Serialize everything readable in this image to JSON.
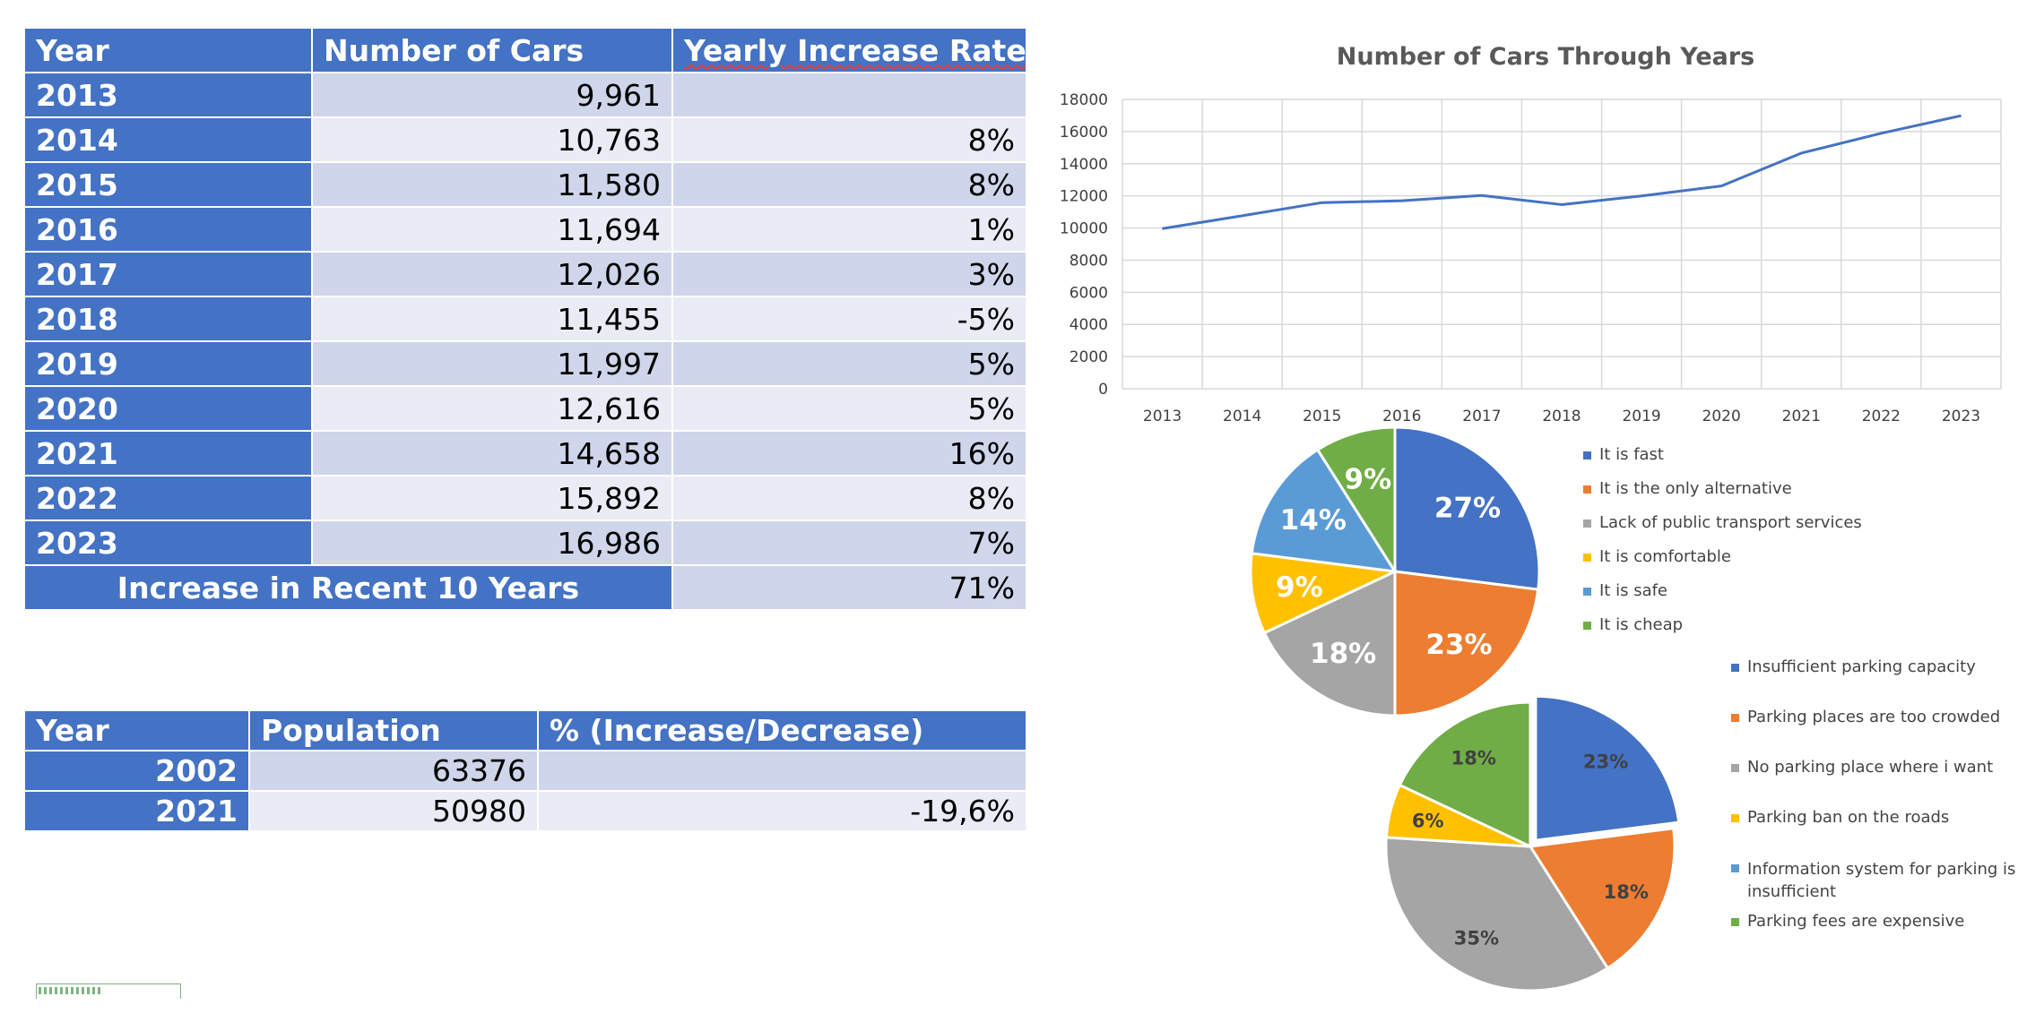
{
  "car_table": {
    "headers": [
      "Year",
      "Number of Cars",
      "Yearly Increase Rate %"
    ],
    "rows": [
      {
        "year": "2013",
        "cars": "9,961",
        "rate": ""
      },
      {
        "year": "2014",
        "cars": "10,763",
        "rate": "8%"
      },
      {
        "year": "2015",
        "cars": "11,580",
        "rate": "8%"
      },
      {
        "year": "2016",
        "cars": "11,694",
        "rate": "1%"
      },
      {
        "year": "2017",
        "cars": "12,026",
        "rate": "3%"
      },
      {
        "year": "2018",
        "cars": "11,455",
        "rate": "-5%"
      },
      {
        "year": "2019",
        "cars": "11,997",
        "rate": "5%"
      },
      {
        "year": "2020",
        "cars": "12,616",
        "rate": "5%"
      },
      {
        "year": "2021",
        "cars": "14,658",
        "rate": "16%"
      },
      {
        "year": "2022",
        "cars": "15,892",
        "rate": "8%"
      },
      {
        "year": "2023",
        "cars": "16,986",
        "rate": "7%"
      }
    ],
    "summary_label": "Increase in Recent 10 Years",
    "summary_value": "71%"
  },
  "population_table": {
    "headers": [
      "Year",
      "Population",
      "% (Increase/Decrease)"
    ],
    "rows": [
      {
        "year": "2002",
        "population": "63376",
        "change": ""
      },
      {
        "year": "2021",
        "population": "50980",
        "change": "-19,6%"
      }
    ]
  },
  "colors": {
    "header_blue": "#4472c4",
    "row_dark": "#cfd5ea",
    "row_light": "#e9ebf5",
    "line": "#4472c4"
  },
  "chart_data": [
    {
      "type": "line",
      "title": "Number of Cars Through Years",
      "x": [
        "2013",
        "2014",
        "2015",
        "2016",
        "2017",
        "2018",
        "2019",
        "2020",
        "2021",
        "2022",
        "2023"
      ],
      "series": [
        {
          "name": "Number of Cars",
          "values": [
            9961,
            10763,
            11580,
            11694,
            12026,
            11455,
            11997,
            12616,
            14658,
            15892,
            16986
          ],
          "color": "#4472c4"
        }
      ],
      "ylim": [
        0,
        18000
      ],
      "yticks": [
        "0",
        "2000",
        "4000",
        "6000",
        "8000",
        "10000",
        "12000",
        "14000",
        "16000",
        "18000"
      ],
      "grid": true,
      "xlabel": "",
      "ylabel": ""
    },
    {
      "type": "pie",
      "title": "",
      "slices": [
        {
          "label": "It is fast",
          "value": 27,
          "text": "27%",
          "color": "#4472c4"
        },
        {
          "label": "It is the only alternative",
          "value": 23,
          "text": "23%",
          "color": "#ed7d31"
        },
        {
          "label": "Lack of public transport services",
          "value": 18,
          "text": "18%",
          "color": "#a5a5a5"
        },
        {
          "label": "It is comfortable",
          "value": 9,
          "text": "9%",
          "color": "#ffc000"
        },
        {
          "label": "It is safe",
          "value": 14,
          "text": "14%",
          "color": "#5b9bd5"
        },
        {
          "label": "It is cheap",
          "value": 9,
          "text": "9%",
          "color": "#70ad47"
        }
      ],
      "legend": "right"
    },
    {
      "type": "pie",
      "title": "",
      "slices": [
        {
          "label": "Insufficient parking capacity",
          "value": 23,
          "text": "23%",
          "color": "#4472c4"
        },
        {
          "label": "Parking places are too crowded",
          "value": 18,
          "text": "18%",
          "color": "#ed7d31"
        },
        {
          "label": "No parking place where i want",
          "value": 35,
          "text": "35%",
          "color": "#a5a5a5"
        },
        {
          "label": "Parking ban on the roads",
          "value": 6,
          "text": "6%",
          "color": "#ffc000"
        },
        {
          "label": "Information system for parking is insufficient",
          "value": 0,
          "text": "",
          "color": "#5b9bd5"
        },
        {
          "label": "Parking fees are expensive",
          "value": 18,
          "text": "18%",
          "color": "#70ad47"
        }
      ],
      "legend": "right"
    }
  ]
}
